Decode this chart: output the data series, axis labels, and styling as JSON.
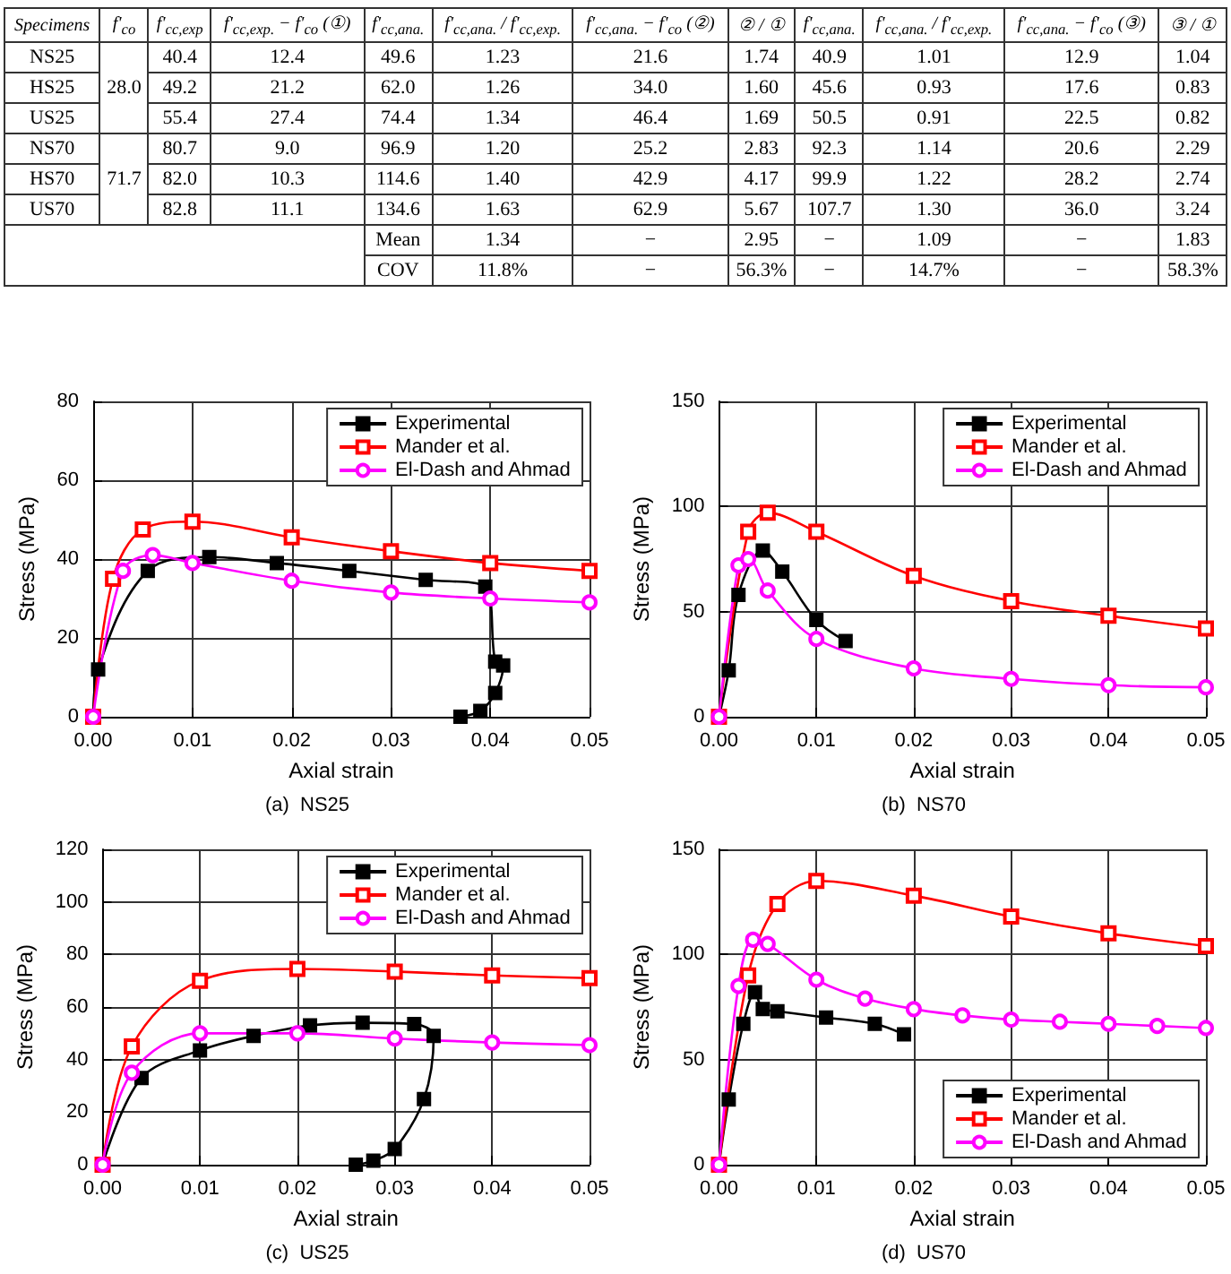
{
  "chart_data": [
    {
      "type": "other",
      "categories": [
        "Specimens",
        "f'$_{co}$",
        "f'$_{cc,exp}$",
        "f'$_{cc,exp.}$ − f'$_{co}$ (①)",
        "f'$_{cc,ana.}$",
        "f'$_{cc,ana.}$ / f'$_{cc,exp.}$",
        "f'$_{cc,ana.}$ − f'$_{co}$ (②)",
        "② / ①",
        "f'$_{cc,ana.}$",
        "f'$_{cc,ana.}$ / f'$_{cc,exp.}$",
        "f'$_{cc,ana.}$ − f'$_{co}$ (③)",
        "③ / ①"
      ],
      "cells": [
        [
          "NS25",
          null,
          "40.4",
          "12.4",
          "49.6",
          "1.23",
          "21.6",
          "1.74",
          "40.9",
          "1.01",
          "12.9",
          "1.04"
        ],
        [
          "HS25",
          "28.0",
          "49.2",
          "21.2",
          "62.0",
          "1.26",
          "34.0",
          "1.60",
          "45.6",
          "0.93",
          "17.6",
          "0.83"
        ],
        [
          "US25",
          null,
          "55.4",
          "27.4",
          "74.4",
          "1.34",
          "46.4",
          "1.69",
          "50.5",
          "0.91",
          "22.5",
          "0.82"
        ],
        [
          "NS70",
          null,
          "80.7",
          "9.0",
          "96.9",
          "1.20",
          "25.2",
          "2.83",
          "92.3",
          "1.14",
          "20.6",
          "2.29"
        ],
        [
          "HS70",
          "71.7",
          "82.0",
          "10.3",
          "114.6",
          "1.40",
          "42.9",
          "4.17",
          "99.9",
          "1.22",
          "28.2",
          "2.74"
        ],
        [
          "US70",
          null,
          "82.8",
          "11.1",
          "134.6",
          "1.63",
          "62.9",
          "5.67",
          "107.7",
          "1.30",
          "36.0",
          "3.24"
        ],
        [
          null,
          null,
          null,
          null,
          "Mean",
          "1.34",
          "−",
          "2.95",
          "−",
          "1.09",
          "−",
          "1.83"
        ],
        [
          null,
          null,
          null,
          null,
          "COV",
          "11.8%",
          "−",
          "56.3%",
          "−",
          "14.7%",
          "−",
          "58.3%"
        ]
      ]
    },
    {
      "type": "line",
      "title": "(a)  NS25",
      "xlabel": "Axial strain",
      "ylabel": "Stress (MPa)",
      "xlim": [
        0,
        0.05
      ],
      "ylim": [
        0,
        80
      ],
      "xticks": [
        {
          "value": 0,
          "label": "0.00"
        },
        {
          "value": 0.01,
          "label": "0.01"
        },
        {
          "value": 0.02,
          "label": "0.02"
        },
        {
          "value": 0.03,
          "label": "0.03"
        },
        {
          "value": 0.04,
          "label": "0.04"
        },
        {
          "value": 0.05,
          "label": "0.05"
        }
      ],
      "yticks": [
        0,
        20,
        40,
        60,
        80
      ],
      "grid": true,
      "legend": "top right",
      "series": [
        {
          "name": "Experimental",
          "color": "#000000",
          "marker": "square",
          "x": [
            0,
            0.0005,
            0.0055,
            0.0117,
            0.0185,
            0.0258,
            0.0335,
            0.0395,
            0.0405,
            0.0413,
            0.0405,
            0.039,
            0.037
          ],
          "values": [
            0,
            12,
            37,
            40.5,
            39,
            37,
            34.7,
            33,
            14,
            13,
            6,
            1.5,
            0
          ]
        },
        {
          "name": "Mander et al.",
          "color": "#ff0000",
          "marker": "square",
          "x": [
            0,
            0.002,
            0.005,
            0.01,
            0.02,
            0.03,
            0.04,
            0.05
          ],
          "values": [
            0,
            35,
            47.5,
            49.5,
            45.5,
            42,
            39,
            37
          ]
        },
        {
          "name": "El-Dash and Ahmad",
          "color": "#ff00ff",
          "marker": "circle",
          "x": [
            0,
            0.003,
            0.006,
            0.01,
            0.02,
            0.03,
            0.04,
            0.05
          ],
          "values": [
            0,
            37,
            41,
            39,
            34.5,
            31.5,
            30,
            29
          ]
        }
      ]
    },
    {
      "type": "line",
      "title": "(b)  NS70",
      "xlabel": "Axial strain",
      "ylabel": "Stress (MPa)",
      "xlim": [
        0,
        0.05
      ],
      "ylim": [
        0,
        150
      ],
      "xticks": [
        {
          "value": 0,
          "label": "0.00"
        },
        {
          "value": 0.01,
          "label": "0.01"
        },
        {
          "value": 0.02,
          "label": "0.02"
        },
        {
          "value": 0.03,
          "label": "0.03"
        },
        {
          "value": 0.04,
          "label": "0.04"
        },
        {
          "value": 0.05,
          "label": "0.05"
        }
      ],
      "yticks": [
        0,
        50,
        100,
        150
      ],
      "grid": true,
      "legend": "top right",
      "series": [
        {
          "name": "Experimental",
          "color": "#000000",
          "marker": "square",
          "x": [
            0,
            0.001,
            0.002,
            0.0045,
            0.0065,
            0.01,
            0.013
          ],
          "values": [
            0,
            22,
            58,
            79,
            69,
            46,
            36
          ]
        },
        {
          "name": "Mander et al.",
          "color": "#ff0000",
          "marker": "square",
          "x": [
            0,
            0.003,
            0.005,
            0.01,
            0.02,
            0.03,
            0.04,
            0.05
          ],
          "values": [
            0,
            88,
            97,
            88,
            67,
            55,
            48,
            42
          ]
        },
        {
          "name": "El-Dash and Ahmad",
          "color": "#ff00ff",
          "marker": "circle",
          "x": [
            0,
            0.002,
            0.003,
            0.005,
            0.01,
            0.02,
            0.03,
            0.04,
            0.05
          ],
          "values": [
            0,
            72,
            75,
            60,
            37,
            23,
            18,
            15,
            14
          ]
        }
      ]
    },
    {
      "type": "line",
      "title": "(c)  US25",
      "xlabel": "Axial strain",
      "ylabel": "Stress (MPa)",
      "xlim": [
        0,
        0.05
      ],
      "ylim": [
        0,
        120
      ],
      "xticks": [
        {
          "value": 0,
          "label": "0.00"
        },
        {
          "value": 0.01,
          "label": "0.01"
        },
        {
          "value": 0.02,
          "label": "0.02"
        },
        {
          "value": 0.03,
          "label": "0.03"
        },
        {
          "value": 0.04,
          "label": "0.04"
        },
        {
          "value": 0.05,
          "label": "0.05"
        }
      ],
      "yticks": [
        0,
        20,
        40,
        60,
        80,
        100,
        120
      ],
      "grid": true,
      "legend": "top right",
      "series": [
        {
          "name": "Experimental",
          "color": "#000000",
          "marker": "square",
          "x": [
            0,
            0.004,
            0.01,
            0.0155,
            0.0213,
            0.0267,
            0.032,
            0.034,
            0.033,
            0.03,
            0.0278,
            0.026
          ],
          "values": [
            0,
            33,
            43.5,
            49,
            53,
            54,
            53.5,
            49,
            25,
            6,
            1.5,
            0
          ]
        },
        {
          "name": "Mander et al.",
          "color": "#ff0000",
          "marker": "square",
          "x": [
            0,
            0.003,
            0.01,
            0.02,
            0.03,
            0.04,
            0.05
          ],
          "values": [
            0,
            45,
            70,
            74.5,
            73.5,
            72,
            71
          ]
        },
        {
          "name": "El-Dash and Ahmad",
          "color": "#ff00ff",
          "marker": "circle",
          "x": [
            0,
            0.003,
            0.01,
            0.02,
            0.03,
            0.04,
            0.05
          ],
          "values": [
            0,
            35,
            50,
            50,
            48,
            46.5,
            45.5
          ]
        }
      ]
    },
    {
      "type": "line",
      "title": "(d)  US70",
      "xlabel": "Axial strain",
      "ylabel": "Stress (MPa)",
      "xlim": [
        0,
        0.05
      ],
      "ylim": [
        0,
        150
      ],
      "xticks": [
        {
          "value": 0,
          "label": "0.00"
        },
        {
          "value": 0.01,
          "label": "0.01"
        },
        {
          "value": 0.02,
          "label": "0.02"
        },
        {
          "value": 0.03,
          "label": "0.03"
        },
        {
          "value": 0.04,
          "label": "0.04"
        },
        {
          "value": 0.05,
          "label": "0.05"
        }
      ],
      "yticks": [
        0,
        50,
        100,
        150
      ],
      "grid": true,
      "legend": "bottom right",
      "series": [
        {
          "name": "Experimental",
          "color": "#000000",
          "marker": "square",
          "x": [
            0,
            0.001,
            0.0025,
            0.0037,
            0.0045,
            0.006,
            0.011,
            0.016,
            0.019
          ],
          "values": [
            0,
            31,
            67,
            82,
            74,
            73,
            70,
            67,
            62
          ]
        },
        {
          "name": "Mander et al.",
          "color": "#ff0000",
          "marker": "square",
          "x": [
            0,
            0.003,
            0.006,
            0.01,
            0.02,
            0.03,
            0.04,
            0.05
          ],
          "values": [
            0,
            90,
            124,
            135,
            128,
            118,
            110,
            104
          ]
        },
        {
          "name": "El-Dash and Ahmad",
          "color": "#ff00ff",
          "marker": "circle",
          "x": [
            0,
            0.002,
            0.0035,
            0.005,
            0.01,
            0.015,
            0.02,
            0.025,
            0.03,
            0.035,
            0.04,
            0.045,
            0.05
          ],
          "values": [
            0,
            85,
            107,
            105,
            88,
            79,
            74,
            71,
            69,
            68,
            67,
            66,
            65
          ]
        }
      ]
    }
  ]
}
